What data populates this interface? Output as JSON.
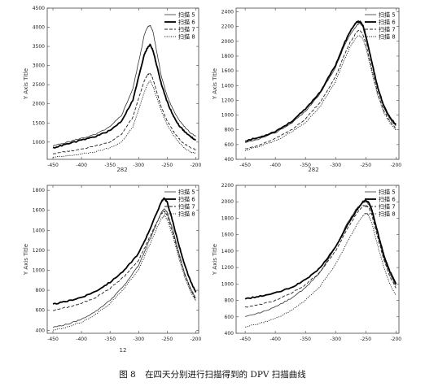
{
  "caption": {
    "fig_no": "图 8",
    "text": "在四天分别进行扫描得到的 DPV 扫描曲线"
  },
  "chart_data": [
    {
      "type": "line",
      "title": "",
      "xlabel": "",
      "ylabel": "Y Axis Title",
      "xlim": [
        -460,
        -195
      ],
      "ylim": [
        550,
        4500
      ],
      "xticks": [
        -450,
        -400,
        -350,
        -300,
        -250,
        -200
      ],
      "yticks": [
        500,
        1000,
        1500,
        2000,
        2500,
        3000,
        3500,
        4000,
        4500
      ],
      "subtitle": "282",
      "grid": false,
      "legend": "top-right",
      "series": [
        {
          "name": "扫描 5",
          "style": "thin",
          "x": [
            -450,
            -425,
            -400,
            -375,
            -350,
            -330,
            -310,
            -300,
            -290,
            -285,
            -280,
            -275,
            -270,
            -260,
            -250,
            -240,
            -230,
            -220,
            -210,
            -200
          ],
          "y": [
            900,
            1000,
            1100,
            1200,
            1400,
            1700,
            2400,
            3100,
            3800,
            4000,
            4050,
            3900,
            3500,
            2700,
            2200,
            1850,
            1600,
            1400,
            1250,
            1150
          ]
        },
        {
          "name": "扫描 6",
          "style": "thick",
          "x": [
            -450,
            -425,
            -400,
            -375,
            -350,
            -330,
            -310,
            -300,
            -290,
            -285,
            -280,
            -275,
            -270,
            -260,
            -250,
            -240,
            -230,
            -220,
            -210,
            -200
          ],
          "y": [
            850,
            950,
            1050,
            1150,
            1300,
            1550,
            2100,
            2700,
            3300,
            3450,
            3550,
            3400,
            3100,
            2500,
            2050,
            1700,
            1450,
            1280,
            1150,
            1050
          ]
        },
        {
          "name": "扫描 7",
          "style": "dashed",
          "x": [
            -450,
            -425,
            -400,
            -375,
            -350,
            -330,
            -310,
            -300,
            -290,
            -285,
            -280,
            -275,
            -270,
            -260,
            -250,
            -240,
            -230,
            -220,
            -210,
            -200
          ],
          "y": [
            700,
            760,
            820,
            900,
            1000,
            1200,
            1650,
            2150,
            2600,
            2750,
            2800,
            2650,
            2400,
            1900,
            1550,
            1300,
            1100,
            950,
            850,
            800
          ]
        },
        {
          "name": "扫描 8",
          "style": "dotted",
          "x": [
            -450,
            -425,
            -400,
            -375,
            -350,
            -330,
            -310,
            -300,
            -290,
            -285,
            -280,
            -275,
            -270,
            -260,
            -250,
            -240,
            -230,
            -220,
            -210,
            -200
          ],
          "y": [
            600,
            640,
            690,
            750,
            850,
            1000,
            1400,
            1850,
            2300,
            2500,
            2600,
            2450,
            2250,
            1800,
            1450,
            1200,
            1000,
            850,
            750,
            700
          ]
        }
      ]
    },
    {
      "type": "line",
      "title": "",
      "xlabel": "",
      "ylabel": "Y Axis Title",
      "xlim": [
        -465,
        -195
      ],
      "ylim": [
        400,
        2450
      ],
      "xticks": [
        -450,
        -400,
        -350,
        -300,
        -250,
        -200
      ],
      "yticks": [
        400,
        600,
        800,
        1000,
        1200,
        1400,
        1600,
        1800,
        2000,
        2200,
        2400
      ],
      "subtitle": "282",
      "grid": false,
      "legend": "top-right",
      "series": [
        {
          "name": "扫描 5",
          "style": "thin",
          "x": [
            -450,
            -425,
            -400,
            -375,
            -350,
            -325,
            -300,
            -285,
            -275,
            -265,
            -260,
            -255,
            -250,
            -240,
            -230,
            -220,
            -210,
            -200
          ],
          "y": [
            620,
            680,
            760,
            880,
            1050,
            1300,
            1650,
            1950,
            2100,
            2220,
            2250,
            2200,
            2050,
            1700,
            1350,
            1100,
            950,
            850
          ]
        },
        {
          "name": "扫描 6",
          "style": "thick",
          "x": [
            -450,
            -425,
            -400,
            -375,
            -350,
            -325,
            -300,
            -285,
            -275,
            -265,
            -260,
            -255,
            -250,
            -240,
            -230,
            -220,
            -210,
            -200
          ],
          "y": [
            650,
            700,
            780,
            900,
            1080,
            1320,
            1680,
            1980,
            2150,
            2260,
            2270,
            2220,
            2080,
            1720,
            1370,
            1120,
            970,
            870
          ]
        },
        {
          "name": "扫描 7",
          "style": "dashed",
          "x": [
            -450,
            -425,
            -400,
            -375,
            -350,
            -325,
            -300,
            -285,
            -275,
            -265,
            -260,
            -255,
            -250,
            -240,
            -230,
            -220,
            -210,
            -200
          ],
          "y": [
            540,
            600,
            680,
            790,
            950,
            1180,
            1520,
            1830,
            2000,
            2130,
            2150,
            2100,
            1970,
            1620,
            1300,
            1060,
            920,
            820
          ]
        },
        {
          "name": "扫描 8",
          "style": "dotted",
          "x": [
            -450,
            -425,
            -400,
            -375,
            -350,
            -325,
            -300,
            -285,
            -275,
            -265,
            -260,
            -255,
            -250,
            -240,
            -230,
            -220,
            -210,
            -200
          ],
          "y": [
            520,
            580,
            650,
            760,
            900,
            1120,
            1460,
            1760,
            1940,
            2060,
            2080,
            2040,
            1920,
            1580,
            1260,
            1030,
            890,
            790
          ]
        }
      ]
    },
    {
      "type": "line",
      "title": "",
      "xlabel": "",
      "ylabel": "Y Axis Title",
      "xlim": [
        -460,
        -195
      ],
      "ylim": [
        370,
        1850
      ],
      "xticks": [
        -450,
        -400,
        -350,
        -300,
        -250,
        -200
      ],
      "yticks": [
        400,
        600,
        800,
        1000,
        1200,
        1400,
        1600,
        1800
      ],
      "subtitle": "12",
      "grid": false,
      "legend": "top-right",
      "series": [
        {
          "name": "扫描 5",
          "style": "thin",
          "x": [
            -450,
            -425,
            -400,
            -375,
            -350,
            -325,
            -300,
            -285,
            -270,
            -260,
            -255,
            -250,
            -240,
            -230,
            -220,
            -210,
            -200
          ],
          "y": [
            430,
            460,
            510,
            590,
            700,
            850,
            1050,
            1250,
            1450,
            1580,
            1620,
            1580,
            1400,
            1180,
            980,
            830,
            720
          ]
        },
        {
          "name": "扫描 6",
          "style": "thick",
          "x": [
            -450,
            -425,
            -400,
            -375,
            -350,
            -325,
            -300,
            -285,
            -270,
            -260,
            -255,
            -250,
            -240,
            -230,
            -220,
            -210,
            -200
          ],
          "y": [
            660,
            690,
            730,
            790,
            880,
            1000,
            1170,
            1350,
            1550,
            1690,
            1720,
            1680,
            1480,
            1260,
            1060,
            900,
            780
          ]
        },
        {
          "name": "扫描 7",
          "style": "dashed",
          "x": [
            -450,
            -425,
            -400,
            -375,
            -350,
            -325,
            -300,
            -285,
            -270,
            -260,
            -255,
            -250,
            -240,
            -230,
            -220,
            -210,
            -200
          ],
          "y": [
            600,
            630,
            670,
            730,
            820,
            940,
            1100,
            1280,
            1460,
            1570,
            1590,
            1550,
            1370,
            1160,
            970,
            820,
            700
          ]
        },
        {
          "name": "扫描 8",
          "style": "dotted",
          "x": [
            -450,
            -425,
            -400,
            -375,
            -350,
            -325,
            -300,
            -285,
            -270,
            -260,
            -255,
            -250,
            -240,
            -230,
            -220,
            -210,
            -200
          ],
          "y": [
            400,
            430,
            480,
            560,
            670,
            820,
            1010,
            1200,
            1400,
            1520,
            1550,
            1510,
            1340,
            1130,
            940,
            800,
            690
          ]
        }
      ]
    },
    {
      "type": "line",
      "title": "",
      "xlabel": "",
      "ylabel": "Y Axis Title",
      "xlim": [
        -465,
        -195
      ],
      "ylim": [
        400,
        2200
      ],
      "xticks": [
        -450,
        -400,
        -350,
        -300,
        -250,
        -200
      ],
      "yticks": [
        400,
        600,
        800,
        1000,
        1200,
        1400,
        1600,
        1800,
        2000,
        2200
      ],
      "subtitle": "",
      "grid": false,
      "legend": "top-right",
      "series": [
        {
          "name": "扫描 5",
          "style": "thin",
          "x": [
            -450,
            -425,
            -400,
            -375,
            -350,
            -325,
            -300,
            -280,
            -265,
            -255,
            -250,
            -245,
            -240,
            -230,
            -220,
            -210,
            -200
          ],
          "y": [
            600,
            650,
            720,
            820,
            950,
            1150,
            1450,
            1750,
            1920,
            1990,
            2000,
            1970,
            1880,
            1600,
            1320,
            1120,
            980
          ]
        },
        {
          "name": "扫描 6",
          "style": "thick",
          "x": [
            -450,
            -425,
            -400,
            -375,
            -350,
            -325,
            -300,
            -280,
            -265,
            -255,
            -250,
            -245,
            -240,
            -230,
            -220,
            -210,
            -200
          ],
          "y": [
            820,
            850,
            890,
            950,
            1050,
            1200,
            1450,
            1720,
            1900,
            2000,
            2020,
            1990,
            1900,
            1620,
            1350,
            1150,
            1000
          ]
        },
        {
          "name": "扫描 7",
          "style": "dashed",
          "x": [
            -450,
            -425,
            -400,
            -375,
            -350,
            -325,
            -300,
            -280,
            -265,
            -255,
            -250,
            -245,
            -240,
            -230,
            -220,
            -210,
            -200
          ],
          "y": [
            720,
            750,
            800,
            880,
            990,
            1150,
            1400,
            1680,
            1860,
            1950,
            1960,
            1930,
            1840,
            1560,
            1290,
            1090,
            950
          ]
        },
        {
          "name": "扫描 8",
          "style": "dotted",
          "x": [
            -450,
            -425,
            -400,
            -375,
            -350,
            -325,
            -300,
            -280,
            -265,
            -255,
            -250,
            -245,
            -240,
            -230,
            -220,
            -210,
            -200
          ],
          "y": [
            480,
            520,
            580,
            670,
            800,
            980,
            1240,
            1520,
            1720,
            1830,
            1860,
            1830,
            1740,
            1460,
            1200,
            1000,
            860
          ]
        }
      ]
    }
  ]
}
